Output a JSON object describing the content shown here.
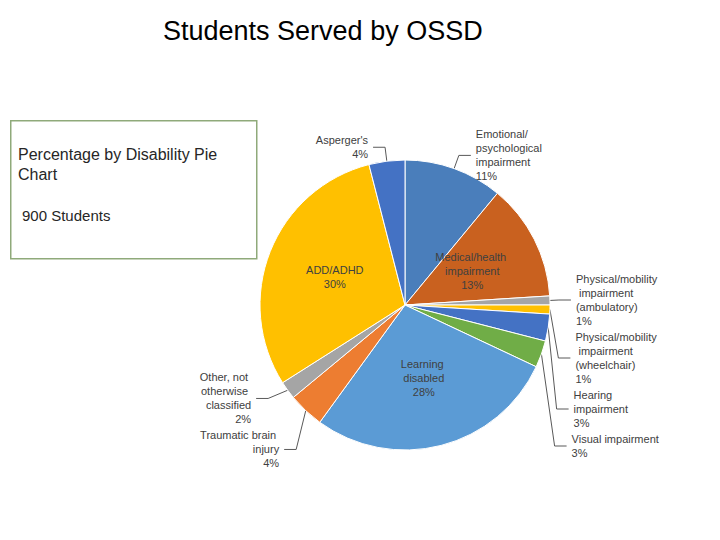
{
  "chart_data": {
    "type": "pie",
    "title": "Students Served by OSSD",
    "subtitle": "Percentage by Disability Pie Chart",
    "annotations": [
      "900 Students"
    ],
    "categories": [
      "Emotional/psychological impairment",
      "Medical/health impairment",
      "Physical/mobility impairment (ambulatory)",
      "Physical/mobility impairment (wheelchair)",
      "Hearing impairment",
      "Visual impairment",
      "Learning disabled",
      "Traumatic brain injury",
      "Other, not otherwise classified",
      "ADD/ADHD",
      "Asperger's"
    ],
    "values": [
      11,
      13,
      1,
      1,
      3,
      3,
      28,
      4,
      2,
      30,
      4
    ],
    "value_labels": [
      "11%",
      "13%",
      "1%",
      "1%",
      "3%",
      "3%",
      "28%",
      "4%",
      "2%",
      "30%",
      "4%"
    ],
    "colors": [
      "#4a7ebb",
      "#c9611f",
      "#a5a5a5",
      "#ffc000",
      "#4472c4",
      "#70ad47",
      "#5b9bd5",
      "#ed7d31",
      "#a5a5a5",
      "#ffc000",
      "#4472c4"
    ],
    "data_labels": true
  }
}
